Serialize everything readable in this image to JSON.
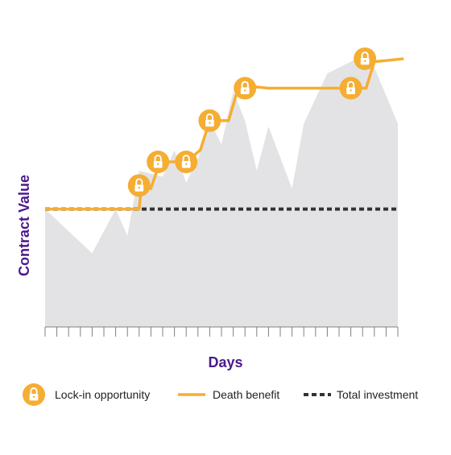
{
  "chart_data": {
    "type": "area",
    "xlabel": "Days",
    "ylabel": "Contract Value",
    "xlim": [
      0,
      30
    ],
    "ylim": [
      0,
      100
    ],
    "grid": false,
    "legend_position": "bottom",
    "contract_value": {
      "name": "Contract Value",
      "x": [
        0,
        4,
        6,
        7,
        8,
        10,
        11,
        12,
        13,
        14,
        15,
        16,
        17,
        18,
        19,
        21,
        22,
        24,
        26,
        27,
        28,
        30
      ],
      "y": [
        40,
        25,
        40,
        31,
        53,
        51,
        60,
        49,
        57,
        70,
        62,
        80,
        70,
        53,
        68,
        47,
        69,
        86,
        90,
        92,
        88,
        69
      ]
    },
    "series": [
      {
        "name": "Death benefit",
        "x": [
          0,
          8,
          8.2,
          9,
          9.6,
          10,
          11,
          11.4,
          12,
          13.2,
          14,
          15.6,
          16.2,
          16.5,
          19,
          25.2,
          26,
          27.3,
          28,
          30.5
        ],
        "y": [
          40,
          40,
          48,
          47,
          54,
          56,
          56,
          56,
          56,
          60,
          70,
          70,
          78,
          82,
          81,
          81,
          81,
          81,
          90,
          91
        ]
      },
      {
        "name": "Total investment",
        "x": [
          0,
          30
        ],
        "y": [
          40,
          40
        ]
      }
    ],
    "lock_in_points": {
      "x": [
        8,
        9.6,
        12,
        14,
        17,
        26,
        27.2
      ],
      "y": [
        48,
        56,
        56,
        70,
        81,
        81,
        91
      ]
    },
    "legend": [
      {
        "label": "Lock-in opportunity",
        "icon": "lock-icon"
      },
      {
        "label": "Death benefit",
        "icon": "solid-line"
      },
      {
        "label": "Total investment",
        "icon": "dashed-line"
      }
    ],
    "colors": {
      "area": "#e3e3e5",
      "death_benefit": "#f5ad32",
      "total_investment": "#333333",
      "axis_title": "#4a1a8c",
      "lock_icon": "#ffffff",
      "tick": "#808080"
    },
    "x_ticks": 30
  }
}
